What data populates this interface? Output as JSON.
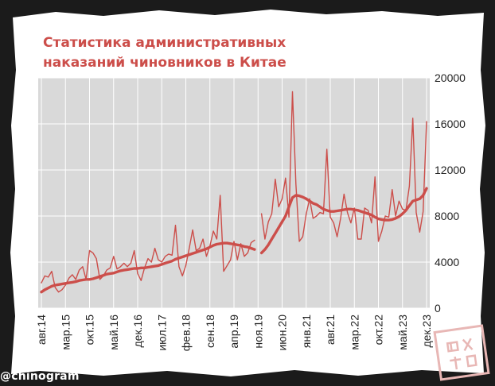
{
  "title": "Статистика административных\nнаказаний чиновников в Китае",
  "watermark": "@chinogram",
  "colors": {
    "background": "#1b1b1b",
    "paper": "#ffffff",
    "plot_area": "#d9d9d9",
    "grid": "#ffffff",
    "series": "#cc4e4a",
    "title": "#cc4e4a"
  },
  "chart_data": {
    "type": "line",
    "title": "Статистика административных наказаний чиновников в Китае",
    "xlabel": "",
    "ylabel": "",
    "ylim": [
      0,
      20000
    ],
    "y_ticks": [
      0,
      4000,
      8000,
      12000,
      16000,
      20000
    ],
    "y_axis_side": "right",
    "grid": true,
    "legend": "none",
    "x_tick_labels": [
      "авг.14",
      "мар.15",
      "окт.15",
      "май.16",
      "дек.16",
      "июл.17",
      "фев.18",
      "сен.18",
      "апр.19",
      "ноя.19",
      "июн.20",
      "янв.21",
      "авг.21",
      "мар.22",
      "окт.22",
      "май.23",
      "дек.23"
    ],
    "x_tick_step_months": 7,
    "gap_after_index": 62,
    "series": [
      {
        "style": "thin",
        "values": [
          2200,
          2800,
          2700,
          3200,
          1800,
          1400,
          1600,
          2000,
          2600,
          2900,
          2500,
          3300,
          3600,
          2500,
          5000,
          4800,
          4300,
          2500,
          2800,
          3300,
          3500,
          4500,
          3400,
          3600,
          3900,
          3600,
          3900,
          5000,
          3000,
          2400,
          3500,
          4300,
          4000,
          5200,
          4200,
          4000,
          4500,
          4700,
          4600,
          7200,
          3600,
          2800,
          3700,
          5200,
          6800,
          5000,
          5200,
          6000,
          4500,
          5400,
          6700,
          6000,
          9800,
          3200,
          3700,
          4200,
          5800,
          4200,
          5600,
          4500,
          4800,
          5700,
          5900,
          null,
          8200,
          6000,
          7500,
          8200,
          11200,
          8800,
          9500,
          11300,
          7900,
          18800,
          10800,
          5800,
          6200,
          8200,
          9500,
          7800,
          8000,
          8300,
          8200,
          13800,
          7900,
          7400,
          6200,
          7800,
          9900,
          8300,
          7400,
          8700,
          6000,
          6000,
          8700,
          8500,
          7400,
          11400,
          5800,
          6700,
          8000,
          7900,
          10300,
          8000,
          9300,
          8600,
          8500,
          10600,
          16500,
          8300,
          6600,
          8400,
          16200
        ]
      },
      {
        "style": "thick",
        "values": [
          1400,
          1600,
          1750,
          1900,
          2000,
          2050,
          2100,
          2150,
          2200,
          2250,
          2300,
          2400,
          2450,
          2500,
          2500,
          2550,
          2650,
          2750,
          2850,
          2950,
          3000,
          3050,
          3150,
          3250,
          3300,
          3350,
          3400,
          3450,
          3450,
          3500,
          3500,
          3550,
          3600,
          3650,
          3700,
          3800,
          3900,
          4000,
          4100,
          4250,
          4350,
          4450,
          4550,
          4650,
          4750,
          4850,
          4950,
          5050,
          5150,
          5300,
          5450,
          5550,
          5600,
          5650,
          5650,
          5600,
          5550,
          5500,
          5450,
          5350,
          5300,
          5200,
          5100,
          null,
          4800,
          5100,
          5500,
          6000,
          6500,
          7000,
          7500,
          8000,
          8800,
          9600,
          9800,
          9750,
          9650,
          9500,
          9300,
          9100,
          9000,
          8800,
          8600,
          8500,
          8400,
          8400,
          8450,
          8500,
          8550,
          8600,
          8600,
          8550,
          8500,
          8400,
          8300,
          8200,
          8100,
          7900,
          7750,
          7700,
          7650,
          7650,
          7700,
          7800,
          7950,
          8200,
          8500,
          8900,
          9300,
          9400,
          9500,
          9800,
          10400
        ]
      }
    ]
  }
}
